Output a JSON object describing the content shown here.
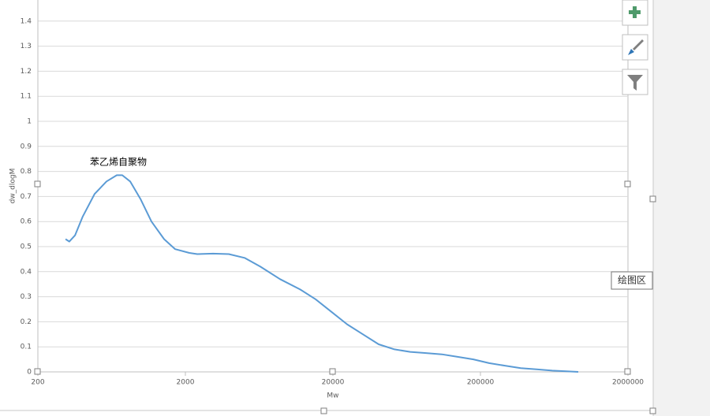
{
  "chart_data": {
    "type": "line",
    "annotation": "苯乙烯自聚物",
    "x_label": "Mw",
    "y_label": "dw_dlogM",
    "log_x": true,
    "grid": true,
    "xlim": [
      200,
      2000000
    ],
    "xticks": [
      200,
      2000,
      20000,
      200000,
      2000000
    ],
    "ylim": [
      0,
      1.5
    ],
    "yticks": [
      0,
      0.1,
      0.2,
      0.3,
      0.4,
      0.5,
      0.6,
      0.7,
      0.8,
      0.9,
      1,
      1.1,
      1.2,
      1.3,
      1.4
    ],
    "series": [
      {
        "color": "#5b9bd5",
        "x": [
          308,
          327,
          357,
          403,
          485,
          584,
          685,
          747,
          845,
          992,
          1178,
          1434,
          1704,
          2126,
          2406,
          3078,
          3936,
          5036,
          6442,
          8766,
          11920,
          15250,
          19510,
          24960,
          31940,
          40860,
          52260,
          66840,
          85520,
          109400,
          139960,
          179000,
          229000,
          293000,
          375000,
          480000,
          614000,
          921000
        ],
        "values": [
          0.53,
          0.52,
          0.545,
          0.62,
          0.71,
          0.76,
          0.785,
          0.785,
          0.76,
          0.69,
          0.6,
          0.53,
          0.49,
          0.475,
          0.47,
          0.472,
          0.47,
          0.455,
          0.42,
          0.37,
          0.33,
          0.29,
          0.24,
          0.19,
          0.15,
          0.11,
          0.09,
          0.08,
          0.075,
          0.07,
          0.06,
          0.05,
          0.035,
          0.025,
          0.015,
          0.01,
          0.005,
          0
        ]
      }
    ]
  },
  "ui": {
    "tooltip": "绘图区"
  }
}
